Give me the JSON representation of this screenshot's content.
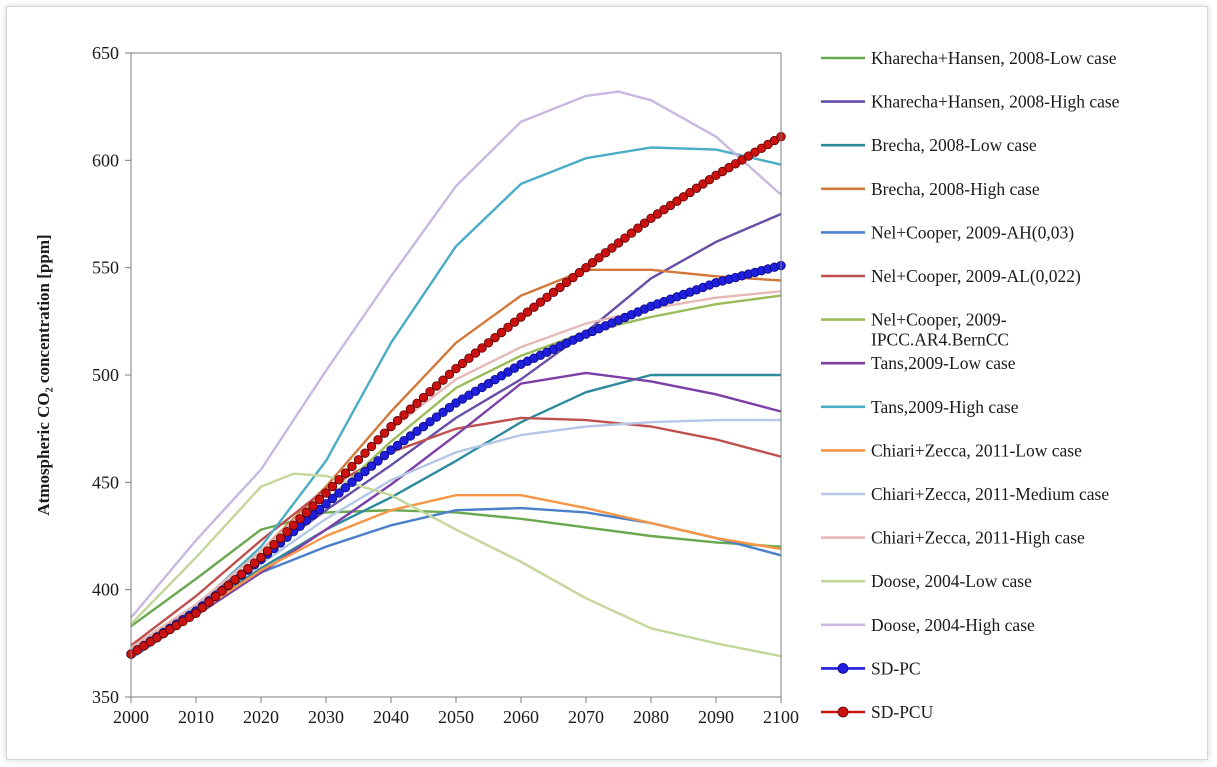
{
  "chart_data": {
    "type": "line",
    "ylabel": "Atmospheric CO₂ concentration [ppm]",
    "xlim": [
      2000,
      2100
    ],
    "ylim": [
      350,
      650
    ],
    "xticks": [
      "2000",
      "2010",
      "2020",
      "2030",
      "2040",
      "2050",
      "2060",
      "2070",
      "2080",
      "2090",
      "2100"
    ],
    "yticks": [
      "350",
      "400",
      "450",
      "500",
      "550",
      "600",
      "650"
    ],
    "grid": false,
    "legend_position": "right",
    "series": [
      {
        "name": "Kharecha+Hansen, 2008-Low case",
        "color": "#6aa84f",
        "marker": "none",
        "x": [
          2000,
          2010,
          2020,
          2030,
          2040,
          2050,
          2060,
          2070,
          2080,
          2090,
          2100
        ],
        "y": [
          383,
          405,
          428,
          436,
          437,
          436,
          433,
          429,
          425,
          422,
          420
        ]
      },
      {
        "name": "Kharecha+Hansen, 2008-High case",
        "color": "#674ea7",
        "marker": "none",
        "x": [
          2000,
          2010,
          2020,
          2030,
          2040,
          2050,
          2060,
          2070,
          2080,
          2090,
          2100
        ],
        "y": [
          373,
          393,
          415,
          437,
          458,
          480,
          498,
          520,
          545,
          562,
          575
        ]
      },
      {
        "name": "Brecha, 2008-Low case",
        "color": "#2e8b9e",
        "marker": "none",
        "x": [
          2000,
          2010,
          2020,
          2030,
          2040,
          2050,
          2060,
          2070,
          2080,
          2090,
          2100
        ],
        "y": [
          372,
          390,
          410,
          428,
          443,
          460,
          478,
          492,
          500,
          500,
          500
        ]
      },
      {
        "name": "Brecha, 2008-High case",
        "color": "#d2783a",
        "marker": "none",
        "x": [
          2000,
          2010,
          2020,
          2030,
          2040,
          2050,
          2060,
          2070,
          2080,
          2090,
          2100
        ],
        "y": [
          372,
          393,
          418,
          448,
          483,
          515,
          537,
          549,
          549,
          546,
          544
        ]
      },
      {
        "name": "Nel+Cooper, 2009-AH(0,03)",
        "color": "#4a7fc9",
        "marker": "none",
        "x": [
          2000,
          2010,
          2020,
          2030,
          2040,
          2050,
          2060,
          2070,
          2080,
          2090,
          2100
        ],
        "y": [
          368,
          388,
          408,
          420,
          430,
          437,
          438,
          436,
          431,
          424,
          416
        ]
      },
      {
        "name": "Nel+Cooper, 2009-AL(0,022)",
        "color": "#c0504d",
        "marker": "none",
        "x": [
          2000,
          2010,
          2020,
          2030,
          2040,
          2050,
          2060,
          2070,
          2080,
          2090,
          2100
        ],
        "y": [
          374,
          397,
          423,
          447,
          464,
          475,
          480,
          479,
          476,
          470,
          462
        ]
      },
      {
        "name": "Nel+Cooper, 2009-IPCC.AR4.BernCC",
        "color": "#9bbb59",
        "marker": "none",
        "x": [
          2000,
          2010,
          2020,
          2030,
          2040,
          2050,
          2060,
          2070,
          2080,
          2090,
          2100
        ],
        "y": [
          371,
          390,
          413,
          441,
          469,
          494,
          509,
          520,
          527,
          533,
          537
        ]
      },
      {
        "name": "Tans,2009-Low case",
        "color": "#7b3fa6",
        "marker": "none",
        "x": [
          2000,
          2010,
          2020,
          2030,
          2040,
          2050,
          2060,
          2070,
          2080,
          2090,
          2100
        ],
        "y": [
          371,
          388,
          408,
          428,
          449,
          472,
          496,
          501,
          497,
          491,
          483
        ]
      },
      {
        "name": "Tans,2009-High case",
        "color": "#4bacc6",
        "marker": "none",
        "x": [
          2000,
          2010,
          2020,
          2030,
          2040,
          2050,
          2060,
          2070,
          2080,
          2090,
          2100
        ],
        "y": [
          369,
          392,
          420,
          460,
          515,
          560,
          589,
          601,
          606,
          605,
          598
        ]
      },
      {
        "name": "Chiari+Zecca, 2011-Low case",
        "color": "#f79646",
        "marker": "none",
        "x": [
          2000,
          2010,
          2020,
          2030,
          2040,
          2050,
          2060,
          2070,
          2080,
          2090,
          2100
        ],
        "y": [
          371,
          389,
          409,
          425,
          437,
          444,
          444,
          438,
          431,
          424,
          419
        ]
      },
      {
        "name": "Chiari+Zecca, 2011-Medium case",
        "color": "#b4c7e7",
        "marker": "none",
        "x": [
          2000,
          2010,
          2020,
          2030,
          2040,
          2050,
          2060,
          2070,
          2080,
          2090,
          2100
        ],
        "y": [
          372,
          390,
          412,
          433,
          451,
          464,
          472,
          476,
          478,
          479,
          479
        ]
      },
      {
        "name": "Chiari+Zecca, 2011-High case",
        "color": "#e6b9b8",
        "marker": "none",
        "x": [
          2000,
          2010,
          2020,
          2030,
          2040,
          2050,
          2060,
          2070,
          2080,
          2090,
          2100
        ],
        "y": [
          373,
          393,
          418,
          446,
          475,
          498,
          513,
          524,
          531,
          536,
          539
        ]
      },
      {
        "name": "Doose, 2004-Low case",
        "color": "#c4d79b",
        "marker": "none",
        "x": [
          2000,
          2010,
          2020,
          2025,
          2030,
          2040,
          2050,
          2060,
          2070,
          2080,
          2090,
          2100
        ],
        "y": [
          384,
          415,
          448,
          454,
          453,
          444,
          428,
          413,
          396,
          382,
          375,
          369
        ]
      },
      {
        "name": "Doose, 2004-High case",
        "color": "#c9b8e0",
        "marker": "none",
        "x": [
          2000,
          2010,
          2020,
          2030,
          2040,
          2050,
          2060,
          2070,
          2075,
          2080,
          2090,
          2100
        ],
        "y": [
          387,
          423,
          456,
          502,
          546,
          588,
          618,
          630,
          632,
          628,
          611,
          584
        ]
      },
      {
        "name": "SD-PC",
        "color": "#1f1fdd",
        "marker": "circle",
        "x": [
          2000,
          2010,
          2020,
          2030,
          2040,
          2050,
          2060,
          2070,
          2080,
          2090,
          2100
        ],
        "y": [
          370,
          390,
          414,
          440,
          465,
          487,
          505,
          519,
          532,
          543,
          551
        ]
      },
      {
        "name": "SD-PCU",
        "color": "#cc1111",
        "marker": "circle",
        "x": [
          2000,
          2010,
          2020,
          2030,
          2040,
          2050,
          2060,
          2070,
          2080,
          2090,
          2100
        ],
        "y": [
          370,
          389,
          415,
          445,
          476,
          503,
          527,
          550,
          573,
          593,
          611
        ]
      }
    ]
  }
}
